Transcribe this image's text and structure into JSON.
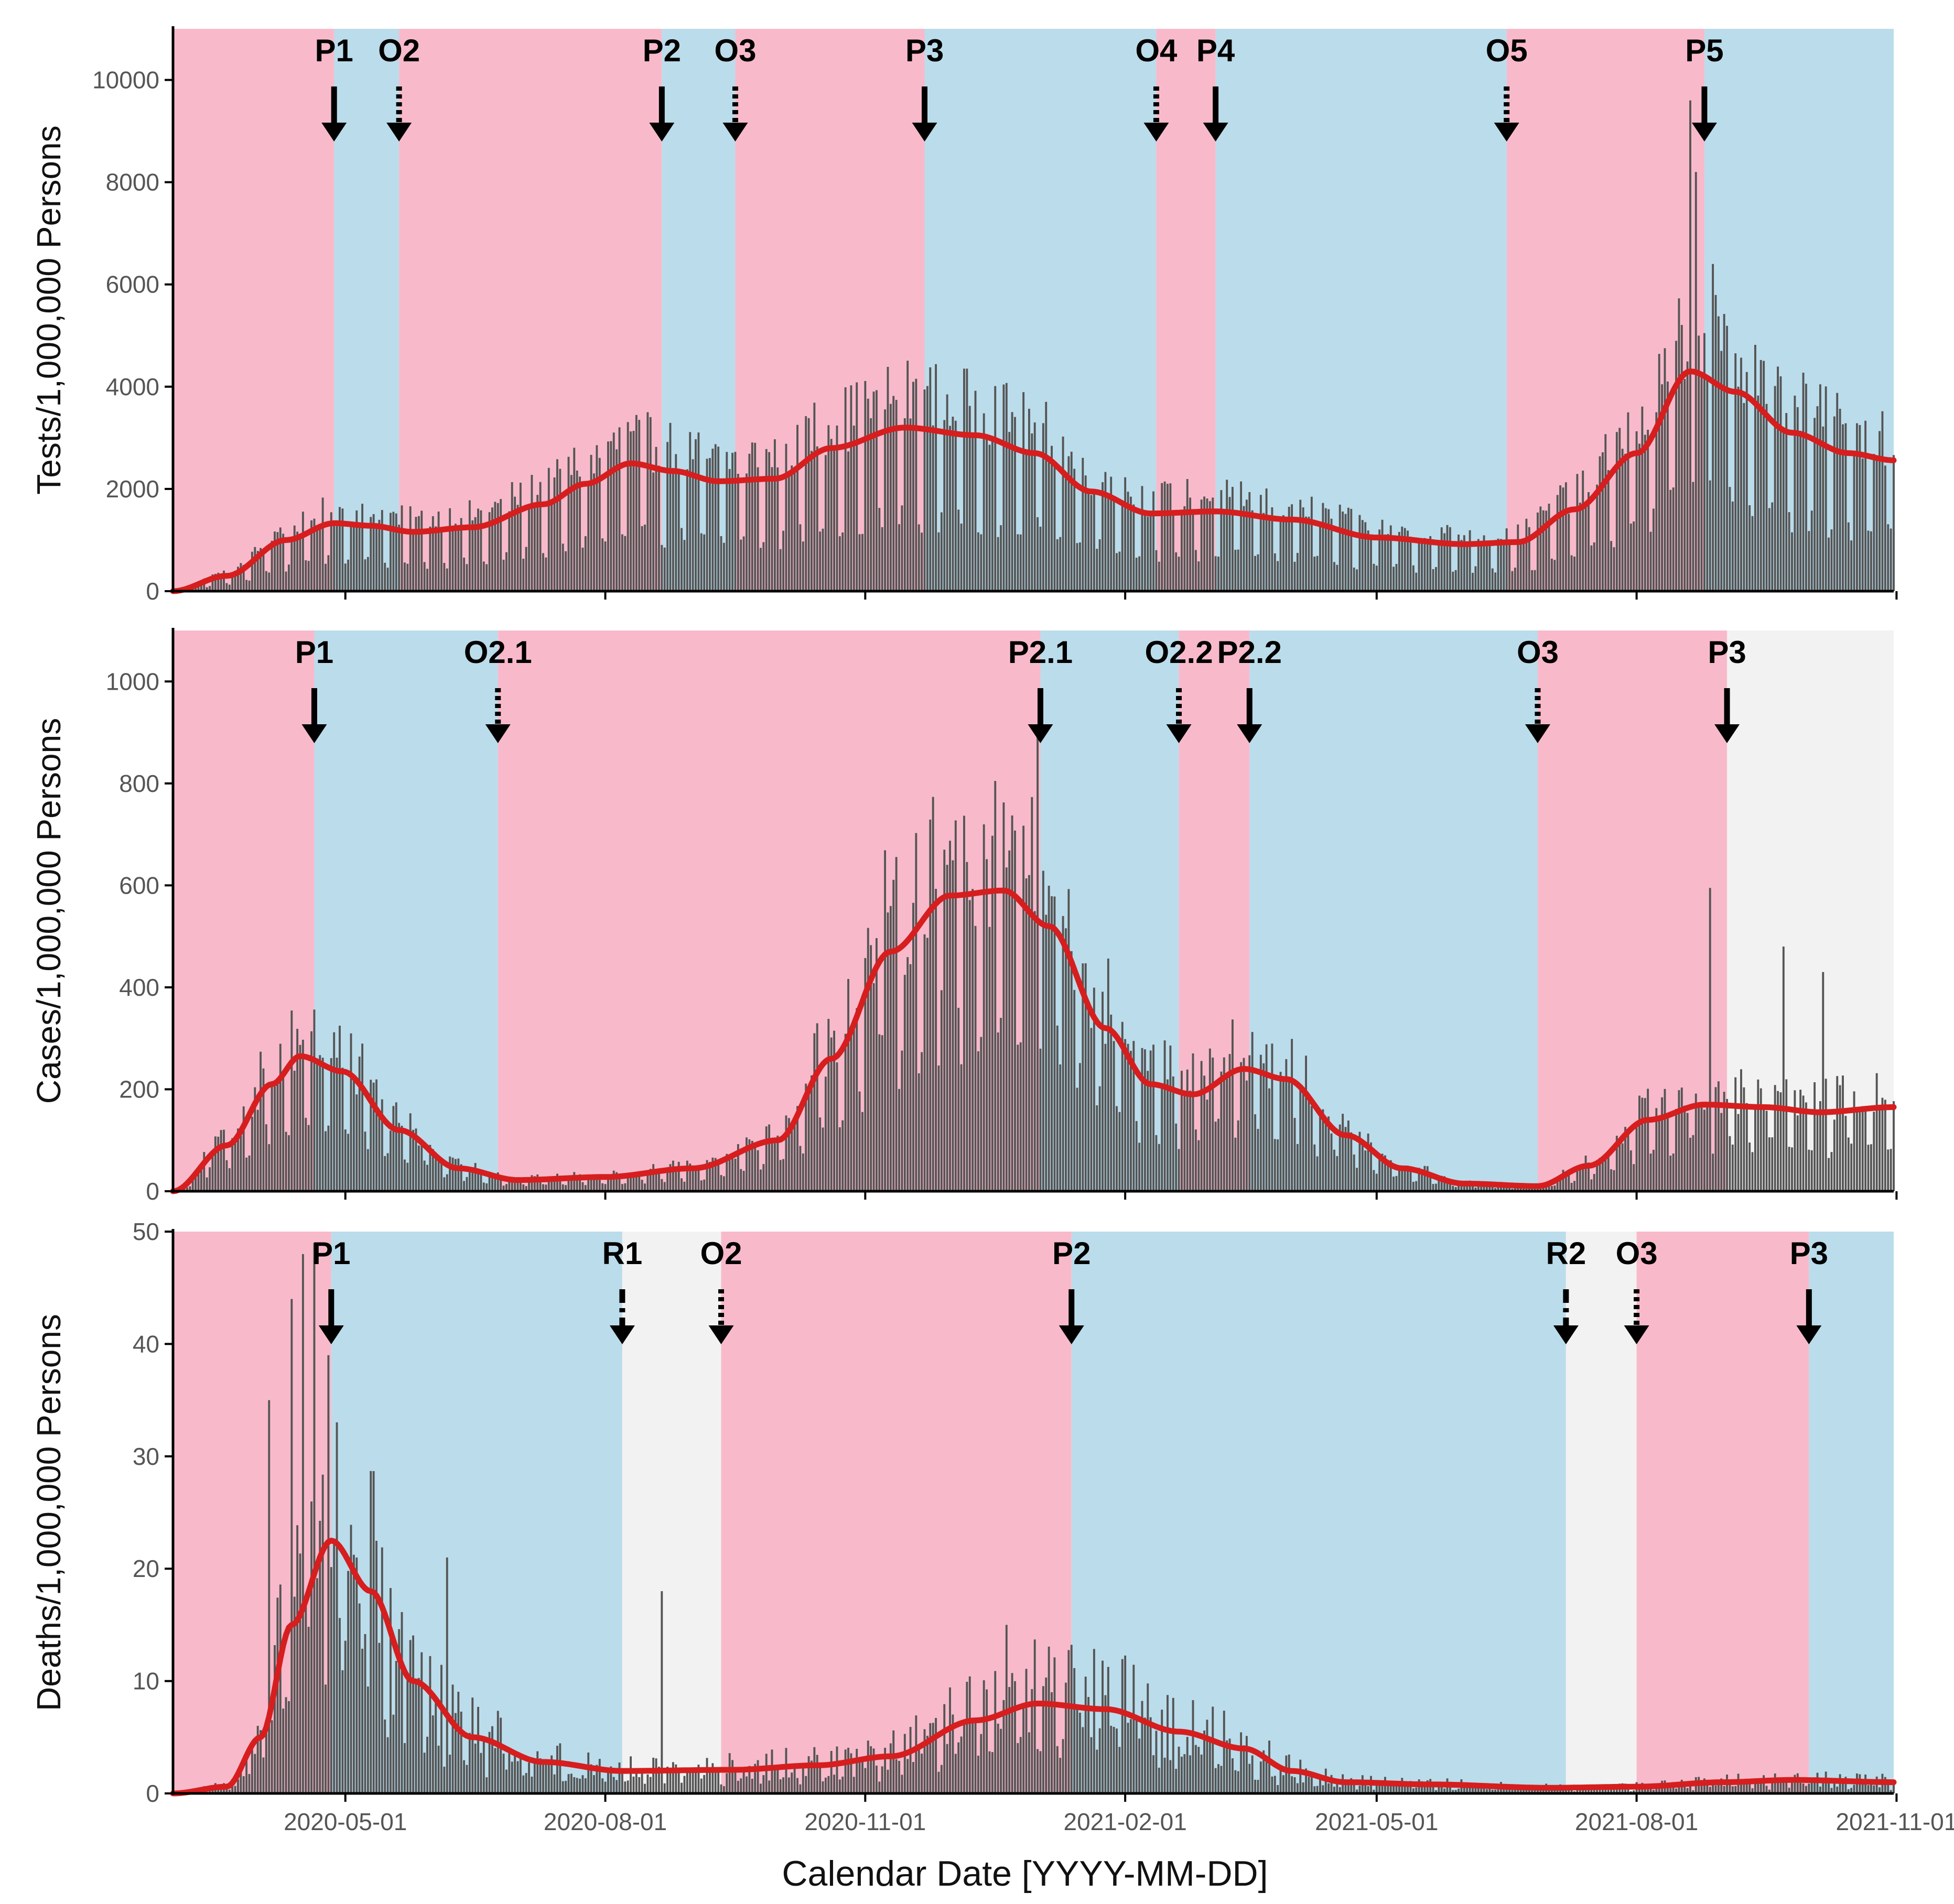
{
  "figure": {
    "x_axis_title": "Calendar Date [YYYY-MM-DD]",
    "x_tick_labels": [
      "2020-05-01",
      "2020-08-01",
      "2020-11-01",
      "2021-02-01",
      "2021-05-01",
      "2021-08-01",
      "2021-11-01"
    ],
    "date_range": [
      "2020-03-01",
      "2021-10-31"
    ],
    "colors": {
      "pink": "#F8BACB",
      "blue": "#BBDCEB",
      "grey": "#F2F2F2",
      "bars": "#555555",
      "curve": "#D61E1E",
      "arrow": "#000000"
    }
  },
  "chart_data": [
    {
      "type": "bar",
      "overlay": "line",
      "ylabel": "Tests/1,000,000 Persons",
      "ylim": [
        0,
        11000
      ],
      "yticks": [
        0,
        2000,
        4000,
        6000,
        8000,
        10000
      ],
      "shading": [
        {
          "start": "2020-03-01",
          "end": "2020-04-27",
          "color": "pink"
        },
        {
          "start": "2020-04-27",
          "end": "2020-05-20",
          "color": "blue"
        },
        {
          "start": "2020-05-20",
          "end": "2020-08-21",
          "color": "pink"
        },
        {
          "start": "2020-08-21",
          "end": "2020-09-16",
          "color": "blue"
        },
        {
          "start": "2020-09-16",
          "end": "2020-11-22",
          "color": "pink"
        },
        {
          "start": "2020-11-22",
          "end": "2021-02-12",
          "color": "blue"
        },
        {
          "start": "2021-02-12",
          "end": "2021-03-05",
          "color": "pink"
        },
        {
          "start": "2021-03-05",
          "end": "2021-06-16",
          "color": "blue"
        },
        {
          "start": "2021-06-16",
          "end": "2021-08-25",
          "color": "pink"
        },
        {
          "start": "2021-08-25",
          "end": "2021-10-31",
          "color": "blue"
        }
      ],
      "annotations": [
        {
          "label": "P1",
          "date": "2020-04-27",
          "style": "solid"
        },
        {
          "label": "O2",
          "date": "2020-05-20",
          "style": "dotted"
        },
        {
          "label": "P2",
          "date": "2020-08-21",
          "style": "solid"
        },
        {
          "label": "O3",
          "date": "2020-09-16",
          "style": "dotted"
        },
        {
          "label": "P3",
          "date": "2020-11-22",
          "style": "solid"
        },
        {
          "label": "O4",
          "date": "2021-02-12",
          "style": "dotted"
        },
        {
          "label": "P4",
          "date": "2021-03-05",
          "style": "solid"
        },
        {
          "label": "O5",
          "date": "2021-06-16",
          "style": "dotted"
        },
        {
          "label": "P5",
          "date": "2021-08-25",
          "style": "solid"
        }
      ],
      "trend": [
        {
          "date": "2020-03-01",
          "value": 0
        },
        {
          "date": "2020-03-20",
          "value": 300
        },
        {
          "date": "2020-04-10",
          "value": 1000
        },
        {
          "date": "2020-04-27",
          "value": 1330
        },
        {
          "date": "2020-05-10",
          "value": 1280
        },
        {
          "date": "2020-05-25",
          "value": 1160
        },
        {
          "date": "2020-06-15",
          "value": 1250
        },
        {
          "date": "2020-07-10",
          "value": 1700
        },
        {
          "date": "2020-07-25",
          "value": 2100
        },
        {
          "date": "2020-08-10",
          "value": 2500
        },
        {
          "date": "2020-08-25",
          "value": 2350
        },
        {
          "date": "2020-09-10",
          "value": 2150
        },
        {
          "date": "2020-09-30",
          "value": 2200
        },
        {
          "date": "2020-10-20",
          "value": 2800
        },
        {
          "date": "2020-11-15",
          "value": 3200
        },
        {
          "date": "2020-12-10",
          "value": 3050
        },
        {
          "date": "2020-12-31",
          "value": 2700
        },
        {
          "date": "2021-01-20",
          "value": 1950
        },
        {
          "date": "2021-02-10",
          "value": 1520
        },
        {
          "date": "2021-03-05",
          "value": 1560
        },
        {
          "date": "2021-04-01",
          "value": 1400
        },
        {
          "date": "2021-05-01",
          "value": 1050
        },
        {
          "date": "2021-06-01",
          "value": 920
        },
        {
          "date": "2021-06-20",
          "value": 960
        },
        {
          "date": "2021-07-10",
          "value": 1600
        },
        {
          "date": "2021-08-01",
          "value": 2700
        },
        {
          "date": "2021-08-20",
          "value": 4300
        },
        {
          "date": "2021-09-05",
          "value": 3900
        },
        {
          "date": "2021-09-25",
          "value": 3100
        },
        {
          "date": "2021-10-15",
          "value": 2700
        },
        {
          "date": "2021-10-31",
          "value": 2560
        }
      ],
      "bar_profile": {
        "weekly_amplitude": 0.55,
        "noise": 0.2,
        "spikes": [
          {
            "date": "2021-08-20",
            "value": 9600
          },
          {
            "date": "2021-08-22",
            "value": 8200
          },
          {
            "date": "2021-08-28",
            "value": 6400
          }
        ]
      }
    },
    {
      "type": "bar",
      "overlay": "line",
      "ylabel": "Cases/1,000,000 Persons",
      "ylim": [
        0,
        1100
      ],
      "yticks": [
        0,
        200,
        400,
        600,
        800,
        1000
      ],
      "shading": [
        {
          "start": "2020-03-01",
          "end": "2020-04-20",
          "color": "pink"
        },
        {
          "start": "2020-04-20",
          "end": "2020-06-24",
          "color": "blue"
        },
        {
          "start": "2020-06-24",
          "end": "2021-01-02",
          "color": "pink"
        },
        {
          "start": "2021-01-02",
          "end": "2021-02-20",
          "color": "blue"
        },
        {
          "start": "2021-02-20",
          "end": "2021-03-17",
          "color": "pink"
        },
        {
          "start": "2021-03-17",
          "end": "2021-06-27",
          "color": "blue"
        },
        {
          "start": "2021-06-27",
          "end": "2021-09-02",
          "color": "pink"
        },
        {
          "start": "2021-09-02",
          "end": "2021-10-31",
          "color": "grey"
        }
      ],
      "annotations": [
        {
          "label": "P1",
          "date": "2020-04-20",
          "style": "solid"
        },
        {
          "label": "O2.1",
          "date": "2020-06-24",
          "style": "dotted"
        },
        {
          "label": "P2.1",
          "date": "2021-01-02",
          "style": "solid"
        },
        {
          "label": "O2.2",
          "date": "2021-02-20",
          "style": "dotted"
        },
        {
          "label": "P2.2",
          "date": "2021-03-17",
          "style": "solid"
        },
        {
          "label": "O3",
          "date": "2021-06-27",
          "style": "dotted"
        },
        {
          "label": "P3",
          "date": "2021-09-02",
          "style": "solid"
        }
      ],
      "trend": [
        {
          "date": "2020-03-01",
          "value": 0
        },
        {
          "date": "2020-03-20",
          "value": 90
        },
        {
          "date": "2020-04-05",
          "value": 210
        },
        {
          "date": "2020-04-15",
          "value": 265
        },
        {
          "date": "2020-04-30",
          "value": 235
        },
        {
          "date": "2020-05-20",
          "value": 120
        },
        {
          "date": "2020-06-10",
          "value": 45
        },
        {
          "date": "2020-07-01",
          "value": 22
        },
        {
          "date": "2020-08-01",
          "value": 28
        },
        {
          "date": "2020-09-01",
          "value": 45
        },
        {
          "date": "2020-10-01",
          "value": 100
        },
        {
          "date": "2020-10-20",
          "value": 260
        },
        {
          "date": "2020-11-10",
          "value": 470
        },
        {
          "date": "2020-12-01",
          "value": 580
        },
        {
          "date": "2020-12-20",
          "value": 590
        },
        {
          "date": "2021-01-05",
          "value": 520
        },
        {
          "date": "2021-01-25",
          "value": 320
        },
        {
          "date": "2021-02-10",
          "value": 210
        },
        {
          "date": "2021-02-25",
          "value": 190
        },
        {
          "date": "2021-03-15",
          "value": 240
        },
        {
          "date": "2021-03-30",
          "value": 220
        },
        {
          "date": "2021-04-20",
          "value": 110
        },
        {
          "date": "2021-05-10",
          "value": 45
        },
        {
          "date": "2021-06-01",
          "value": 15
        },
        {
          "date": "2021-06-27",
          "value": 10
        },
        {
          "date": "2021-07-15",
          "value": 50
        },
        {
          "date": "2021-08-05",
          "value": 140
        },
        {
          "date": "2021-08-25",
          "value": 170
        },
        {
          "date": "2021-09-15",
          "value": 165
        },
        {
          "date": "2021-10-05",
          "value": 155
        },
        {
          "date": "2021-10-31",
          "value": 165
        }
      ],
      "bar_profile": {
        "weekly_amplitude": 0.45,
        "noise": 0.25,
        "spikes": [
          {
            "date": "2021-01-01",
            "value": 900
          },
          {
            "date": "2021-08-27",
            "value": 595
          },
          {
            "date": "2021-09-22",
            "value": 480
          },
          {
            "date": "2021-10-06",
            "value": 430
          }
        ]
      }
    },
    {
      "type": "bar",
      "overlay": "line",
      "ylabel": "Deaths/1,000,000 Persons",
      "ylim": [
        0,
        50
      ],
      "yticks": [
        0,
        10,
        20,
        30,
        40,
        50
      ],
      "shading": [
        {
          "start": "2020-03-01",
          "end": "2020-04-26",
          "color": "pink"
        },
        {
          "start": "2020-04-26",
          "end": "2020-08-07",
          "color": "blue"
        },
        {
          "start": "2020-08-07",
          "end": "2020-09-11",
          "color": "grey"
        },
        {
          "start": "2020-09-11",
          "end": "2021-01-13",
          "color": "pink"
        },
        {
          "start": "2021-01-13",
          "end": "2021-07-07",
          "color": "blue"
        },
        {
          "start": "2021-07-07",
          "end": "2021-08-01",
          "color": "grey"
        },
        {
          "start": "2021-08-01",
          "end": "2021-10-01",
          "color": "pink"
        },
        {
          "start": "2021-10-01",
          "end": "2021-10-31",
          "color": "blue"
        }
      ],
      "annotations": [
        {
          "label": "P1",
          "date": "2020-04-26",
          "style": "solid"
        },
        {
          "label": "R1",
          "date": "2020-08-07",
          "style": "dashdot"
        },
        {
          "label": "O2",
          "date": "2020-09-11",
          "style": "dotted"
        },
        {
          "label": "P2",
          "date": "2021-01-13",
          "style": "solid"
        },
        {
          "label": "R2",
          "date": "2021-07-07",
          "style": "dashdot"
        },
        {
          "label": "O3",
          "date": "2021-08-01",
          "style": "dotted"
        },
        {
          "label": "P3",
          "date": "2021-10-01",
          "style": "solid"
        }
      ],
      "trend": [
        {
          "date": "2020-03-01",
          "value": 0
        },
        {
          "date": "2020-03-20",
          "value": 0.6
        },
        {
          "date": "2020-04-01",
          "value": 5
        },
        {
          "date": "2020-04-12",
          "value": 15
        },
        {
          "date": "2020-04-26",
          "value": 22.5
        },
        {
          "date": "2020-05-10",
          "value": 18
        },
        {
          "date": "2020-05-25",
          "value": 10
        },
        {
          "date": "2020-06-15",
          "value": 5
        },
        {
          "date": "2020-07-10",
          "value": 2.8
        },
        {
          "date": "2020-08-07",
          "value": 2
        },
        {
          "date": "2020-09-15",
          "value": 2.1
        },
        {
          "date": "2020-10-15",
          "value": 2.5
        },
        {
          "date": "2020-11-10",
          "value": 3.3
        },
        {
          "date": "2020-12-10",
          "value": 6.5
        },
        {
          "date": "2021-01-01",
          "value": 8
        },
        {
          "date": "2021-01-25",
          "value": 7.5
        },
        {
          "date": "2021-02-20",
          "value": 5.5
        },
        {
          "date": "2021-03-15",
          "value": 4
        },
        {
          "date": "2021-04-01",
          "value": 2
        },
        {
          "date": "2021-04-20",
          "value": 1
        },
        {
          "date": "2021-05-20",
          "value": 0.8
        },
        {
          "date": "2021-07-01",
          "value": 0.5
        },
        {
          "date": "2021-08-01",
          "value": 0.6
        },
        {
          "date": "2021-09-01",
          "value": 1
        },
        {
          "date": "2021-09-25",
          "value": 1.2
        },
        {
          "date": "2021-10-31",
          "value": 1
        }
      ],
      "bar_profile": {
        "weekly_amplitude": 0.35,
        "noise": 0.55,
        "spikes": [
          {
            "date": "2020-04-04",
            "value": 35
          },
          {
            "date": "2020-04-12",
            "value": 44
          },
          {
            "date": "2020-04-16",
            "value": 48
          },
          {
            "date": "2020-04-20",
            "value": 49
          },
          {
            "date": "2020-04-25",
            "value": 39
          },
          {
            "date": "2020-06-06",
            "value": 21
          },
          {
            "date": "2020-08-21",
            "value": 18
          },
          {
            "date": "2020-12-21",
            "value": 15
          }
        ]
      }
    }
  ]
}
